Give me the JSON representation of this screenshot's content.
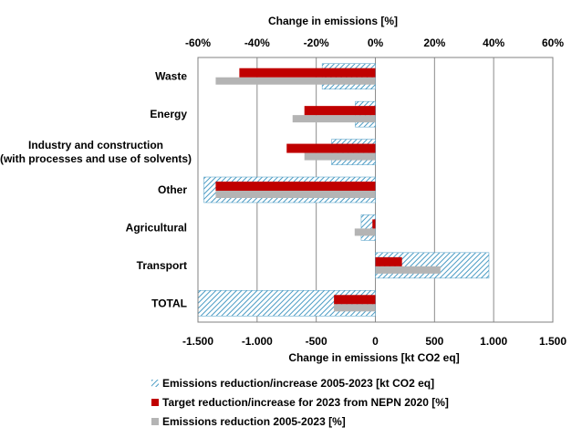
{
  "chart_data": {
    "type": "bar",
    "orientation": "horizontal",
    "categories": [
      "Waste",
      "Energy",
      "Industry and construction\n(with processes and use of solvents)",
      "Other",
      "Agricultural",
      "Transport",
      "TOTAL"
    ],
    "top_axis": {
      "label": "Change in emissions  [%]",
      "range": [
        -60,
        60
      ],
      "ticks": [
        "-60%",
        "-40%",
        "-20%",
        "0%",
        "20%",
        "40%",
        "60%"
      ],
      "tick_values": [
        -60,
        -40,
        -20,
        0,
        20,
        40,
        60
      ]
    },
    "bottom_axis": {
      "label": "Change in emissions [kt CO2 eq]",
      "range": [
        -1500,
        1500
      ],
      "ticks": [
        "-1.500",
        "-1.000",
        "-500",
        "0",
        "500",
        "1.000",
        "1.500"
      ],
      "tick_values": [
        -1500,
        -1000,
        -500,
        0,
        500,
        1000,
        1500
      ]
    },
    "series": [
      {
        "name": "Emissions reduction/increase 2005-2023 [kt CO2 eq]",
        "axis": "bottom",
        "style": "hatched",
        "color": "#4a9bc4",
        "values": [
          -450,
          -170,
          -370,
          -1450,
          -120,
          960,
          -1500
        ]
      },
      {
        "name": "Target reduction/increase for 2023 from NEPN 2020 [%]",
        "axis": "top",
        "style": "solid",
        "color": "#c00000",
        "values": [
          -46,
          -24,
          -30,
          -54,
          -1,
          9,
          -14
        ]
      },
      {
        "name": "Emissions reduction 2005-2023 [%]",
        "axis": "top",
        "style": "solid",
        "color": "#b4b4b4",
        "values": [
          -54,
          -28,
          -24,
          -54,
          -7,
          22,
          -14
        ]
      }
    ],
    "legend": [
      "Emissions reduction/increase 2005-2023 [kt CO2 eq]",
      "Target reduction/increase for 2023 from NEPN 2020 [%]",
      "Emissions reduction 2005-2023 [%]"
    ],
    "legend_position": "bottom",
    "grid": true
  }
}
